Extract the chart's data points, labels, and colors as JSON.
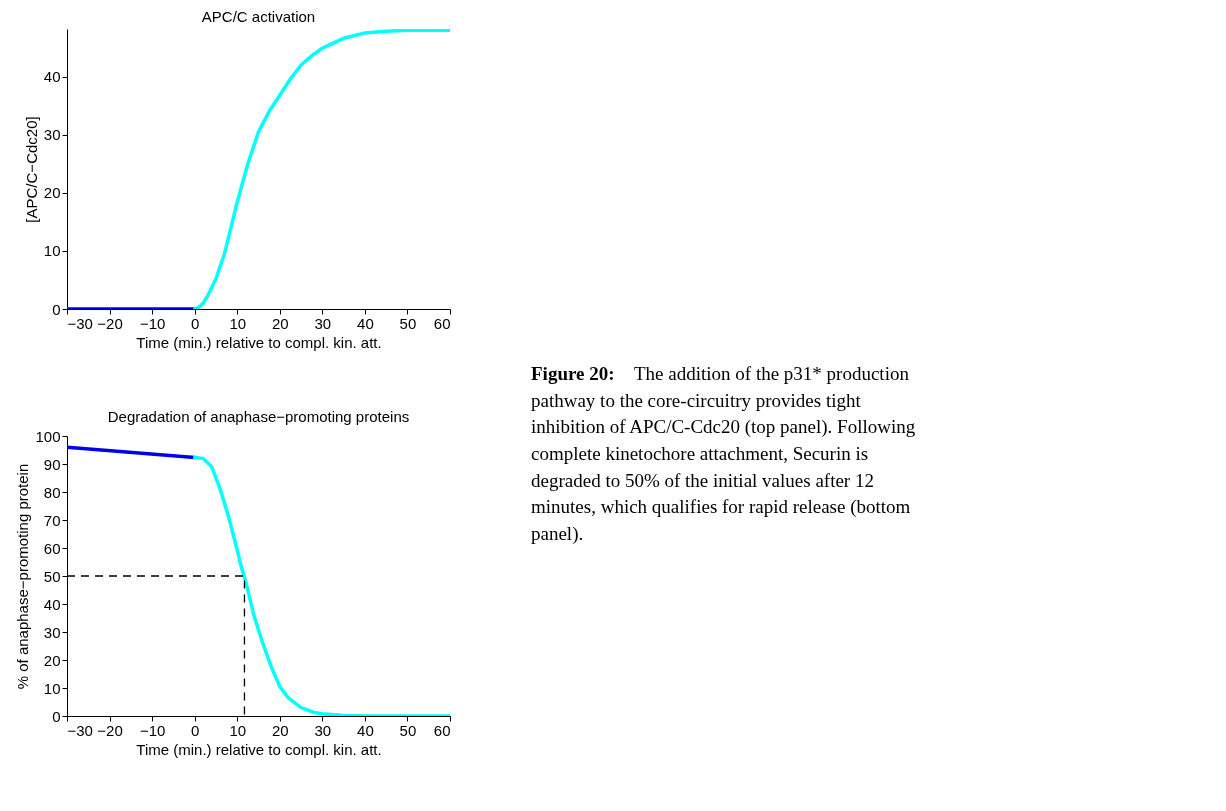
{
  "chart_data": [
    {
      "type": "line",
      "title": "APC/C activation",
      "xlabel": "Time (min.) relative to compl. kin. att.",
      "ylabel": "[APC/C−Cdc20]",
      "xlim": [
        -30,
        60
      ],
      "xticks": [
        {
          "value": -30,
          "label": "−30"
        },
        {
          "value": -20,
          "label": "−20"
        },
        {
          "value": -10,
          "label": "−10"
        },
        0,
        10,
        20,
        30,
        40,
        50,
        60
      ],
      "ylim": [
        0,
        48.2
      ],
      "yticks": [
        0,
        10,
        20,
        30,
        40
      ],
      "grid": false,
      "series": [
        {
          "color": "#0000ee",
          "x": [
            -30,
            0
          ],
          "values": [
            0,
            0
          ]
        },
        {
          "color": "#00ffff",
          "x": [
            0,
            1,
            2,
            3,
            5,
            7,
            10,
            12.5,
            15,
            17.5,
            20,
            22.5,
            25,
            27.5,
            30,
            35,
            40,
            45,
            50,
            55,
            60
          ],
          "values": [
            0,
            0.3,
            1,
            2.2,
            5.2,
            9.5,
            18.4,
            25,
            30.5,
            34,
            36.8,
            39.6,
            42,
            43.6,
            44.9,
            46.6,
            47.5,
            47.8,
            48,
            48,
            48
          ]
        }
      ]
    },
    {
      "type": "line",
      "title": "Degradation of anaphase−promoting proteins",
      "xlabel": "Time (min.) relative to compl. kin. att.",
      "ylabel": "% of anaphase−promoting protein",
      "xlim": [
        -30,
        60
      ],
      "xticks": [
        {
          "value": -30,
          "label": "−30"
        },
        {
          "value": -20,
          "label": "−20"
        },
        {
          "value": -10,
          "label": "−10"
        },
        0,
        10,
        20,
        30,
        40,
        50,
        60
      ],
      "ylim": [
        0,
        100
      ],
      "yticks": [
        0,
        10,
        20,
        30,
        40,
        50,
        60,
        70,
        80,
        90,
        100
      ],
      "grid": false,
      "series": [
        {
          "color": "#0000ee",
          "x": [
            -30,
            0
          ],
          "values": [
            96,
            92.3
          ]
        },
        {
          "color": "#00ffff",
          "x": [
            0,
            2,
            4,
            6,
            8,
            10,
            11,
            12,
            14,
            16,
            18,
            20,
            22,
            25,
            28,
            30,
            35,
            40,
            50,
            60
          ],
          "values": [
            92.3,
            92,
            89,
            81,
            71,
            59.3,
            53,
            48,
            35.5,
            26,
            17.6,
            10.5,
            6.5,
            3,
            1.3,
            0.8,
            0.2,
            0,
            0,
            0
          ]
        },
        {
          "color": "#000000",
          "line_style": "dashed",
          "x": [
            -30,
            11.7,
            11.7
          ],
          "values": [
            50,
            50,
            0
          ]
        }
      ]
    },
    {
      "type": "other",
      "annotations": [
        "Figure 20:",
        "The addition of the p31* production pathway to the core-circuitry provides tight inhibition of APC/C-Cdc20 (top panel). Following complete kinetochore attachment, Securin is degraded to 50% of the initial values after 12 minutes, which qualifies for rapid release (bottom panel)."
      ]
    }
  ]
}
